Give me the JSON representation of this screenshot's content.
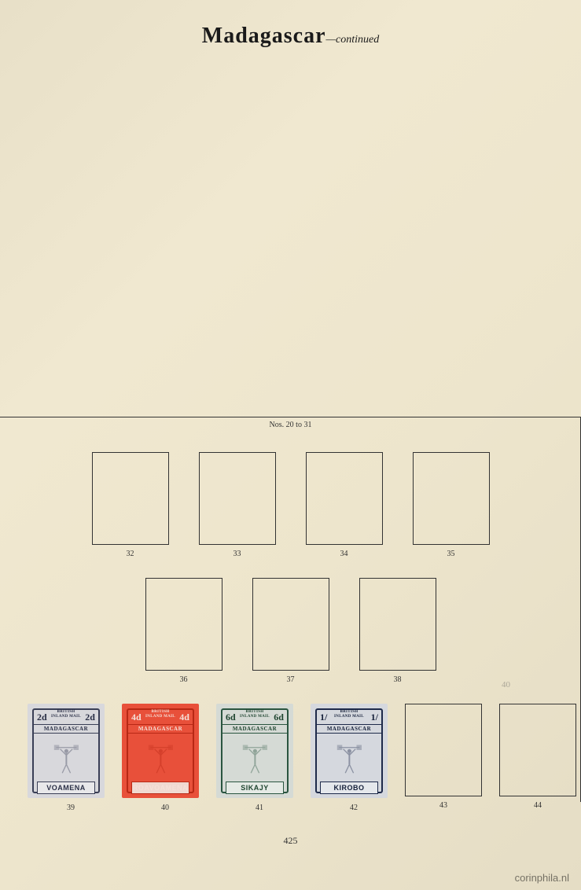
{
  "page": {
    "title": "Madagascar",
    "subtitle": "—continued",
    "nos_label": "Nos. 20 to 31",
    "page_number": "425",
    "watermark": "corinphila.nl",
    "pencil_mark": "40",
    "background_color": "#ece4cb"
  },
  "row1": {
    "slots": [
      {
        "label": "32"
      },
      {
        "label": "33"
      },
      {
        "label": "34"
      },
      {
        "label": "35"
      }
    ]
  },
  "row2": {
    "slots": [
      {
        "label": "36"
      },
      {
        "label": "37"
      },
      {
        "label": "38"
      }
    ]
  },
  "row3": {
    "slots": [
      {
        "label": "39",
        "has_stamp": true
      },
      {
        "label": "40",
        "has_stamp": true
      },
      {
        "label": "41",
        "has_stamp": true
      },
      {
        "label": "42",
        "has_stamp": true
      },
      {
        "label": "43",
        "has_stamp": false
      },
      {
        "label": "44",
        "has_stamp": false
      }
    ]
  },
  "stamps": [
    {
      "value": "2d",
      "header_line1": "BRITISH",
      "header_line2": "INLAND MAIL",
      "country": "MADAGASCAR",
      "name": "VOAMENA",
      "bg_color": "#d8d8dc",
      "frame_color": "#3a3f56",
      "text_color": "#2a2f46",
      "name_bg": "#e8e8ea"
    },
    {
      "value": "4d",
      "header_line1": "BRITISH",
      "header_line2": "INLAND MAIL",
      "country": "MADAGASCAR",
      "name": "ROAVOAMENA",
      "bg_color": "#e8503a",
      "frame_color": "#b82815",
      "text_color": "#f5e0d8",
      "name_bg": "#f0d8d0"
    },
    {
      "value": "6d",
      "header_line1": "BRITISH",
      "header_line2": "INLAND MAIL",
      "country": "MADAGASCAR",
      "name": "SIKAJY",
      "bg_color": "#d5dad5",
      "frame_color": "#2a5540",
      "text_color": "#1f4530",
      "name_bg": "#e5eae5"
    },
    {
      "value": "1/",
      "header_line1": "BRITISH",
      "header_line2": "INLAND MAIL",
      "country": "MADAGASCAR",
      "name": "KIROBO",
      "bg_color": "#d5d8de",
      "frame_color": "#1e2a4a",
      "text_color": "#15203a",
      "name_bg": "#e5e8ec"
    }
  ]
}
